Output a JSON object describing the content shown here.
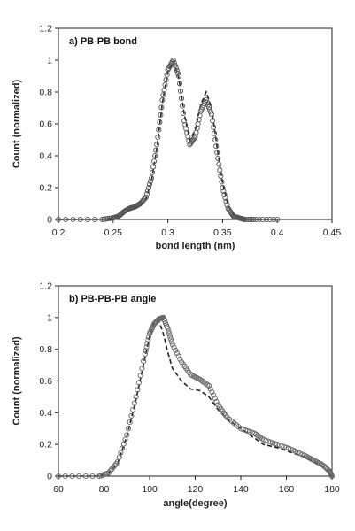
{
  "chart_data": [
    {
      "type": "line",
      "title": "a) PB-PB bond",
      "xlabel": "bond length (nm)",
      "ylabel": "Count (normalized)",
      "xlim": [
        0.2,
        0.45
      ],
      "ylim": [
        0,
        1.2
      ],
      "xticks": [
        "0.2",
        "0.25",
        "0.3",
        "0.35",
        "0.4",
        "0.45"
      ],
      "yticks": [
        "0",
        "0.2",
        "0.4",
        "0.6",
        "0.8",
        "1",
        "1.2"
      ],
      "grid": false,
      "series": [
        {
          "style": "dashed-line",
          "color": "#222222",
          "x": [
            0.2,
            0.24,
            0.25,
            0.255,
            0.26,
            0.265,
            0.27,
            0.275,
            0.28,
            0.285,
            0.29,
            0.295,
            0.3,
            0.305,
            0.31,
            0.315,
            0.32,
            0.325,
            0.33,
            0.335,
            0.34,
            0.345,
            0.35,
            0.355,
            0.36,
            0.365,
            0.37,
            0.38,
            0.4
          ],
          "y": [
            0,
            0,
            0.01,
            0.02,
            0.04,
            0.06,
            0.07,
            0.09,
            0.13,
            0.24,
            0.45,
            0.73,
            0.93,
            0.99,
            0.89,
            0.66,
            0.5,
            0.56,
            0.72,
            0.8,
            0.7,
            0.45,
            0.23,
            0.09,
            0.03,
            0.01,
            0,
            0,
            0
          ]
        },
        {
          "style": "open-circles",
          "color": "#555555",
          "x": [
            0.2,
            0.24,
            0.25,
            0.255,
            0.26,
            0.265,
            0.27,
            0.275,
            0.28,
            0.285,
            0.29,
            0.295,
            0.3,
            0.305,
            0.31,
            0.315,
            0.32,
            0.325,
            0.33,
            0.335,
            0.34,
            0.345,
            0.35,
            0.355,
            0.36,
            0.365,
            0.37,
            0.38,
            0.4
          ],
          "y": [
            0,
            0,
            0.01,
            0.02,
            0.05,
            0.07,
            0.08,
            0.1,
            0.14,
            0.26,
            0.47,
            0.75,
            0.94,
            1.0,
            0.9,
            0.62,
            0.47,
            0.52,
            0.68,
            0.75,
            0.66,
            0.42,
            0.2,
            0.07,
            0.02,
            0.01,
            0,
            0,
            0
          ]
        }
      ]
    },
    {
      "type": "line",
      "title": "b) PB-PB-PB  angle",
      "xlabel": "angle(degree)",
      "ylabel": "Count (normalized)",
      "xlim": [
        60,
        180
      ],
      "ylim": [
        0,
        1.2
      ],
      "xticks": [
        "60",
        "80",
        "100",
        "120",
        "140",
        "160",
        "180"
      ],
      "yticks": [
        "0",
        "0.2",
        "0.4",
        "0.6",
        "0.8",
        "1",
        "1.2"
      ],
      "grid": false,
      "series": [
        {
          "style": "dashed-line",
          "color": "#222222",
          "x": [
            60,
            78,
            82,
            86,
            90,
            94,
            98,
            100,
            102,
            104,
            106,
            108,
            110,
            114,
            118,
            122,
            126,
            130,
            134,
            140,
            146,
            150,
            156,
            162,
            168,
            172,
            176,
            179,
            180
          ],
          "y": [
            0,
            0,
            0.02,
            0.08,
            0.25,
            0.48,
            0.75,
            0.88,
            0.97,
            0.98,
            0.9,
            0.78,
            0.68,
            0.6,
            0.55,
            0.54,
            0.5,
            0.42,
            0.36,
            0.3,
            0.24,
            0.2,
            0.18,
            0.15,
            0.12,
            0.09,
            0.06,
            0.02,
            0
          ]
        },
        {
          "style": "open-circles",
          "color": "#666666",
          "x": [
            60,
            78,
            82,
            86,
            90,
            94,
            98,
            100,
            102,
            104,
            106,
            108,
            110,
            114,
            118,
            122,
            126,
            130,
            134,
            140,
            146,
            150,
            156,
            162,
            168,
            172,
            176,
            179,
            180
          ],
          "y": [
            0,
            0,
            0.02,
            0.09,
            0.26,
            0.5,
            0.77,
            0.9,
            0.96,
            0.99,
            1.0,
            0.93,
            0.83,
            0.72,
            0.64,
            0.61,
            0.57,
            0.45,
            0.37,
            0.3,
            0.27,
            0.23,
            0.2,
            0.17,
            0.13,
            0.1,
            0.07,
            0.03,
            0
          ]
        }
      ]
    }
  ]
}
